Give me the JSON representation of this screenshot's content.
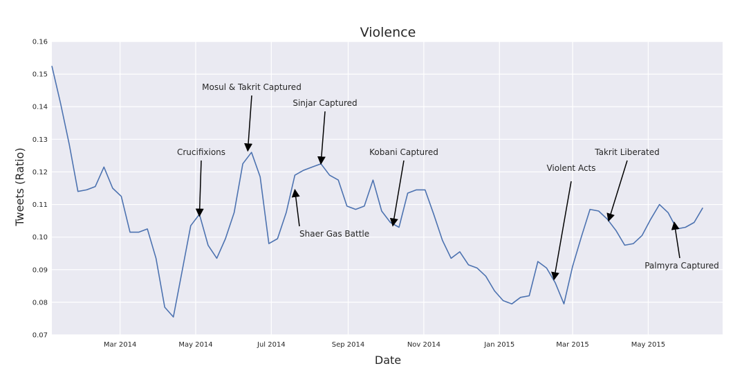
{
  "chart_data": {
    "type": "line",
    "title": "Violence",
    "xlabel": "Date",
    "ylabel": "Tweets (Ratio)",
    "ylim": [
      0.07,
      0.16
    ],
    "xlim": [
      "2014-01-05",
      "2015-06-30"
    ],
    "grid": true,
    "background": "#eaeaf2",
    "line_color": "#4c72b0",
    "yticks": [
      "0.07",
      "0.08",
      "0.09",
      "0.10",
      "0.11",
      "0.12",
      "0.13",
      "0.14",
      "0.15",
      "0.16"
    ],
    "xticks": [
      {
        "date": "2014-03-01",
        "label": "Mar 2014"
      },
      {
        "date": "2014-05-01",
        "label": "May 2014"
      },
      {
        "date": "2014-07-01",
        "label": "Jul 2014"
      },
      {
        "date": "2014-09-01",
        "label": "Sep 2014"
      },
      {
        "date": "2014-11-01",
        "label": "Nov 2014"
      },
      {
        "date": "2015-01-01",
        "label": "Jan 2015"
      },
      {
        "date": "2015-03-01",
        "label": "Mar 2015"
      },
      {
        "date": "2015-05-01",
        "label": "May 2015"
      }
    ],
    "series": [
      {
        "points": [
          [
            "2014-01-05",
            0.1525
          ],
          [
            "2014-01-12",
            0.141
          ],
          [
            "2014-01-19",
            0.1285
          ],
          [
            "2014-01-26",
            0.114
          ],
          [
            "2014-02-02",
            0.1145
          ],
          [
            "2014-02-09",
            0.1155
          ],
          [
            "2014-02-16",
            0.1215
          ],
          [
            "2014-02-23",
            0.115
          ],
          [
            "2014-03-02",
            0.1125
          ],
          [
            "2014-03-09",
            0.1015
          ],
          [
            "2014-03-16",
            0.1015
          ],
          [
            "2014-03-23",
            0.1025
          ],
          [
            "2014-03-30",
            0.0935
          ],
          [
            "2014-04-06",
            0.0785
          ],
          [
            "2014-04-13",
            0.0755
          ],
          [
            "2014-04-20",
            0.0895
          ],
          [
            "2014-04-27",
            0.1035
          ],
          [
            "2014-05-04",
            0.107
          ],
          [
            "2014-05-11",
            0.0975
          ],
          [
            "2014-05-18",
            0.0935
          ],
          [
            "2014-05-25",
            0.0995
          ],
          [
            "2014-06-01",
            0.1075
          ],
          [
            "2014-06-08",
            0.1225
          ],
          [
            "2014-06-15",
            0.126
          ],
          [
            "2014-06-22",
            0.1185
          ],
          [
            "2014-06-29",
            0.098
          ],
          [
            "2014-07-06",
            0.0995
          ],
          [
            "2014-07-13",
            0.1075
          ],
          [
            "2014-07-20",
            0.119
          ],
          [
            "2014-07-27",
            0.1205
          ],
          [
            "2014-08-03",
            0.1215
          ],
          [
            "2014-08-10",
            0.1225
          ],
          [
            "2014-08-17",
            0.119
          ],
          [
            "2014-08-24",
            0.1175
          ],
          [
            "2014-08-31",
            0.1095
          ],
          [
            "2014-09-07",
            0.1085
          ],
          [
            "2014-09-14",
            0.1095
          ],
          [
            "2014-09-21",
            0.1175
          ],
          [
            "2014-09-28",
            0.108
          ],
          [
            "2014-10-05",
            0.1045
          ],
          [
            "2014-10-12",
            0.103
          ],
          [
            "2014-10-19",
            0.1135
          ],
          [
            "2014-10-26",
            0.1145
          ],
          [
            "2014-11-02",
            0.1145
          ],
          [
            "2014-11-09",
            0.107
          ],
          [
            "2014-11-16",
            0.099
          ],
          [
            "2014-11-23",
            0.0935
          ],
          [
            "2014-11-30",
            0.0955
          ],
          [
            "2014-12-07",
            0.0915
          ],
          [
            "2014-12-14",
            0.0905
          ],
          [
            "2014-12-21",
            0.088
          ],
          [
            "2014-12-28",
            0.0835
          ],
          [
            "2015-01-04",
            0.0805
          ],
          [
            "2015-01-11",
            0.0795
          ],
          [
            "2015-01-18",
            0.0815
          ],
          [
            "2015-01-25",
            0.082
          ],
          [
            "2015-02-01",
            0.0925
          ],
          [
            "2015-02-08",
            0.0905
          ],
          [
            "2015-02-15",
            0.086
          ],
          [
            "2015-02-22",
            0.0795
          ],
          [
            "2015-03-01",
            0.091
          ],
          [
            "2015-03-08",
            0.1
          ],
          [
            "2015-03-15",
            0.1085
          ],
          [
            "2015-03-22",
            0.108
          ],
          [
            "2015-03-29",
            0.1055
          ],
          [
            "2015-04-05",
            0.102
          ],
          [
            "2015-04-12",
            0.0975
          ],
          [
            "2015-04-19",
            0.098
          ],
          [
            "2015-04-26",
            0.1005
          ],
          [
            "2015-05-03",
            0.1055
          ],
          [
            "2015-05-10",
            0.11
          ],
          [
            "2015-05-17",
            0.1075
          ],
          [
            "2015-05-24",
            0.1025
          ],
          [
            "2015-05-31",
            0.103
          ],
          [
            "2015-06-07",
            0.1045
          ],
          [
            "2015-06-14",
            0.109
          ]
        ]
      }
    ],
    "annotations": [
      {
        "text": "Crucifixions",
        "date": "2014-05-04",
        "value": 0.1065
      },
      {
        "text": "Mosul & Takrit Captured",
        "date": "2014-06-12",
        "value": 0.1265
      },
      {
        "text": "Sinjar Captured",
        "date": "2014-08-10",
        "value": 0.1225
      },
      {
        "text": "Shaer Gas Battle",
        "date": "2014-07-20",
        "value": 0.1145
      },
      {
        "text": "Kobani Captured",
        "date": "2014-10-07",
        "value": 0.1035
      },
      {
        "text": "Violent Acts",
        "date": "2015-02-14",
        "value": 0.087
      },
      {
        "text": "Takrit Liberated",
        "date": "2015-03-30",
        "value": 0.105
      },
      {
        "text": "Palmyra Captured",
        "date": "2015-05-22",
        "value": 0.1045
      }
    ]
  }
}
